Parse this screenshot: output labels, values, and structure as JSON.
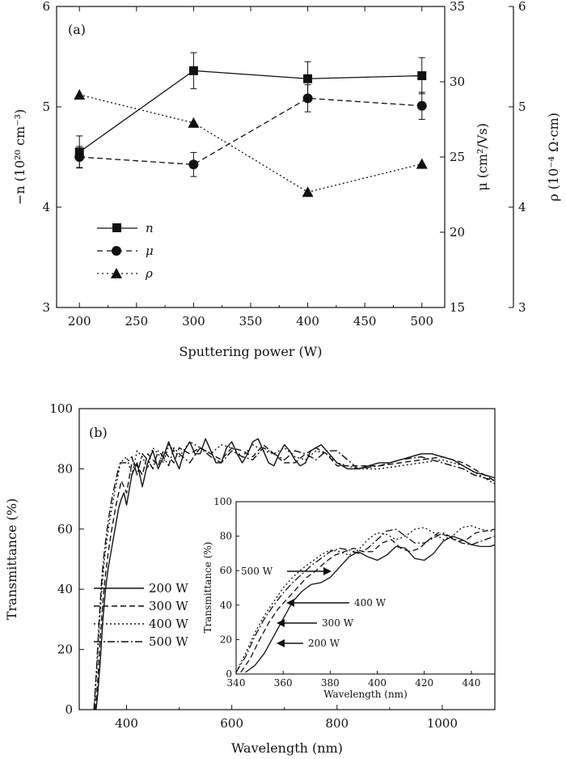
{
  "chart_data": [
    {
      "type": "line",
      "panel_label": "(a)",
      "x": [
        200,
        300,
        400,
        500
      ],
      "xlabel": "Sputtering power (W)",
      "xlim": [
        180,
        520
      ],
      "xticks": [
        "200",
        "250",
        "300",
        "350",
        "400",
        "450",
        "500"
      ],
      "ylabel_left": "−n (10²⁰ cm⁻³)",
      "ylim_left": [
        3,
        6
      ],
      "yticks_left": [
        "3",
        "4",
        "5",
        "6"
      ],
      "ylabel_mid": "μ (cm²/Vs)",
      "ylim_mid": [
        15,
        35
      ],
      "yticks_mid": [
        "15",
        "20",
        "25",
        "30",
        "35"
      ],
      "ylabel_right": "ρ (10⁻⁴ Ω·cm)",
      "ylim_right": [
        3,
        6
      ],
      "yticks_right": [
        "3",
        "4",
        "5",
        "6"
      ],
      "legend_position": "center-left",
      "series": [
        {
          "name": "n",
          "axis": "left",
          "marker": "square",
          "style": "solid",
          "values": [
            4.55,
            5.36,
            5.28,
            5.31
          ],
          "errors": [
            0.16,
            0.18,
            0.17,
            0.18
          ]
        },
        {
          "name": "μ",
          "axis": "mid",
          "marker": "circle",
          "style": "dashed",
          "values": [
            25.0,
            24.5,
            28.9,
            28.4
          ],
          "errors": [
            0.7,
            0.8,
            0.9,
            0.9
          ]
        },
        {
          "name": "ρ",
          "axis": "right",
          "marker": "triangle",
          "style": "dotted",
          "values": [
            5.12,
            4.84,
            4.15,
            4.43
          ]
        }
      ]
    },
    {
      "type": "line",
      "panel_label": "(b)",
      "xlabel": "Wavelength (nm)",
      "ylabel": "Transmittance (%)",
      "xlim": [
        310,
        1100
      ],
      "ylim": [
        0,
        100
      ],
      "xticks": [
        "400",
        "600",
        "800",
        "1000"
      ],
      "yticks": [
        "0",
        "20",
        "40",
        "60",
        "80",
        "100"
      ],
      "legend_position": "center-left",
      "series": [
        {
          "name": "200 W",
          "style": "solid",
          "x": [
            342,
            345,
            350,
            355,
            360,
            365,
            370,
            375,
            380,
            385,
            390,
            395,
            400,
            410,
            420,
            430,
            440,
            450,
            460,
            470,
            480,
            490,
            500,
            510,
            520,
            530,
            540,
            550,
            560,
            570,
            580,
            590,
            600,
            610,
            620,
            630,
            640,
            650,
            660,
            670,
            680,
            690,
            700,
            710,
            720,
            730,
            740,
            750,
            760,
            770,
            780,
            790,
            800,
            820,
            840,
            860,
            880,
            900,
            920,
            940,
            960,
            980,
            1000,
            1020,
            1040,
            1060,
            1080,
            1100
          ],
          "values": [
            0,
            5,
            16,
            30,
            40,
            47,
            52,
            57,
            62,
            67,
            70,
            72,
            68,
            78,
            82,
            74,
            82,
            86,
            80,
            84,
            89,
            84,
            80,
            86,
            89,
            85,
            85,
            90,
            86,
            82,
            82,
            87,
            89,
            85,
            82,
            85,
            89,
            90,
            86,
            82,
            81,
            85,
            88,
            86,
            83,
            81,
            82,
            86,
            87,
            88,
            86,
            84,
            82,
            80,
            80,
            81,
            82,
            82,
            83,
            84,
            85,
            85,
            84,
            83,
            81,
            79,
            78,
            77
          ]
        },
        {
          "name": "300 W",
          "style": "dashed",
          "x": [
            340,
            345,
            350,
            355,
            360,
            365,
            370,
            375,
            380,
            385,
            390,
            400,
            410,
            420,
            430,
            440,
            450,
            460,
            470,
            480,
            490,
            500,
            520,
            540,
            560,
            580,
            600,
            620,
            640,
            660,
            680,
            700,
            720,
            740,
            760,
            780,
            800,
            840,
            880,
            920,
            960,
            1000,
            1040,
            1060,
            1080,
            1100
          ],
          "values": [
            0,
            9,
            24,
            36,
            45,
            52,
            58,
            63,
            68,
            72,
            76,
            72,
            82,
            81,
            78,
            85,
            83,
            81,
            86,
            84,
            82,
            87,
            85,
            87,
            85,
            83,
            87,
            86,
            84,
            88,
            85,
            82,
            82,
            85,
            87,
            85,
            81,
            81,
            81,
            82,
            83,
            84,
            82,
            80,
            78,
            76
          ]
        },
        {
          "name": "400 W",
          "style": "dotted",
          "x": [
            338,
            343,
            348,
            353,
            358,
            363,
            368,
            373,
            378,
            383,
            388,
            400,
            410,
            420,
            430,
            440,
            450,
            460,
            470,
            480,
            490,
            500,
            520,
            540,
            560,
            580,
            600,
            620,
            640,
            660,
            680,
            700,
            720,
            740,
            760,
            780,
            800,
            840,
            880,
            920,
            960,
            1000,
            1040,
            1060,
            1080,
            1100
          ],
          "values": [
            0,
            12,
            28,
            40,
            50,
            57,
            63,
            68,
            73,
            77,
            82,
            84,
            78,
            86,
            84,
            80,
            87,
            85,
            82,
            88,
            86,
            84,
            89,
            87,
            85,
            88,
            87,
            84,
            88,
            86,
            85,
            87,
            84,
            83,
            86,
            85,
            82,
            80,
            80,
            81,
            82,
            83,
            81,
            79,
            77,
            75
          ]
        },
        {
          "name": "500 W",
          "style": "dashdot",
          "x": [
            338,
            343,
            348,
            353,
            358,
            363,
            368,
            373,
            378,
            383,
            388,
            400,
            410,
            420,
            430,
            440,
            450,
            460,
            470,
            480,
            490,
            500,
            520,
            540,
            560,
            580,
            600,
            620,
            640,
            660,
            680,
            700,
            720,
            740,
            760,
            780,
            800,
            840,
            880,
            920,
            960,
            1000,
            1040,
            1060,
            1080,
            1100
          ],
          "values": [
            0,
            14,
            30,
            44,
            53,
            60,
            66,
            71,
            75,
            79,
            82,
            82,
            84,
            78,
            85,
            83,
            80,
            86,
            84,
            81,
            87,
            85,
            82,
            87,
            84,
            82,
            86,
            84,
            83,
            87,
            85,
            83,
            86,
            85,
            83,
            86,
            86,
            80,
            81,
            83,
            84,
            82,
            80,
            78,
            77,
            76
          ]
        }
      ]
    },
    {
      "type": "line",
      "inset": true,
      "xlabel": "Wavelength (nm)",
      "ylabel": "Transmittance (%)",
      "xlim": [
        340,
        450
      ],
      "ylim": [
        0,
        100
      ],
      "xticks": [
        "340",
        "360",
        "380",
        "400",
        "420",
        "440"
      ],
      "yticks": [
        "0",
        "20",
        "40",
        "60",
        "80",
        "100"
      ],
      "annotations": [
        "500 W",
        "400 W",
        "300 W",
        "200 W"
      ],
      "series": [
        {
          "name": "200 W",
          "style": "solid",
          "x": [
            344,
            348,
            352,
            356,
            360,
            364,
            368,
            372,
            376,
            380,
            384,
            388,
            392,
            396,
            400,
            404,
            408,
            412,
            416,
            420,
            424,
            428,
            432,
            436,
            440,
            444,
            448,
            450
          ],
          "values": [
            1,
            5,
            12,
            22,
            32,
            42,
            48,
            52,
            53,
            56,
            62,
            68,
            71,
            68,
            66,
            69,
            74,
            73,
            67,
            66,
            70,
            77,
            80,
            78,
            75,
            74,
            74,
            75
          ]
        },
        {
          "name": "300 W",
          "style": "dashed",
          "x": [
            342,
            346,
            350,
            354,
            358,
            362,
            366,
            370,
            374,
            378,
            382,
            386,
            390,
            394,
            398,
            402,
            406,
            410,
            414,
            418,
            422,
            426,
            430,
            434,
            438,
            442,
            446,
            450
          ],
          "values": [
            1,
            9,
            20,
            30,
            38,
            44,
            50,
            56,
            60,
            65,
            69,
            71,
            73,
            71,
            71,
            76,
            78,
            73,
            71,
            73,
            78,
            82,
            80,
            77,
            78,
            82,
            83,
            84
          ]
        },
        {
          "name": "400 W",
          "style": "dotted",
          "x": [
            340,
            344,
            348,
            352,
            356,
            360,
            364,
            368,
            372,
            376,
            380,
            384,
            388,
            392,
            396,
            400,
            404,
            408,
            412,
            416,
            420,
            424,
            428,
            432,
            436,
            440,
            444,
            448,
            450
          ],
          "values": [
            1,
            12,
            24,
            34,
            42,
            50,
            56,
            61,
            65,
            69,
            72,
            71,
            69,
            72,
            78,
            82,
            81,
            78,
            80,
            84,
            85,
            82,
            78,
            80,
            85,
            86,
            84,
            83,
            83
          ]
        },
        {
          "name": "500 W",
          "style": "dashdot",
          "x": [
            340,
            344,
            348,
            352,
            356,
            360,
            364,
            368,
            372,
            376,
            380,
            384,
            388,
            392,
            396,
            400,
            404,
            408,
            412,
            416,
            420,
            424,
            428,
            432,
            436,
            440,
            444,
            448,
            450
          ],
          "values": [
            1,
            10,
            22,
            32,
            40,
            47,
            53,
            58,
            63,
            67,
            71,
            73,
            72,
            70,
            73,
            78,
            83,
            84,
            80,
            76,
            76,
            79,
            82,
            79,
            76,
            75,
            77,
            79,
            80
          ]
        }
      ]
    }
  ]
}
